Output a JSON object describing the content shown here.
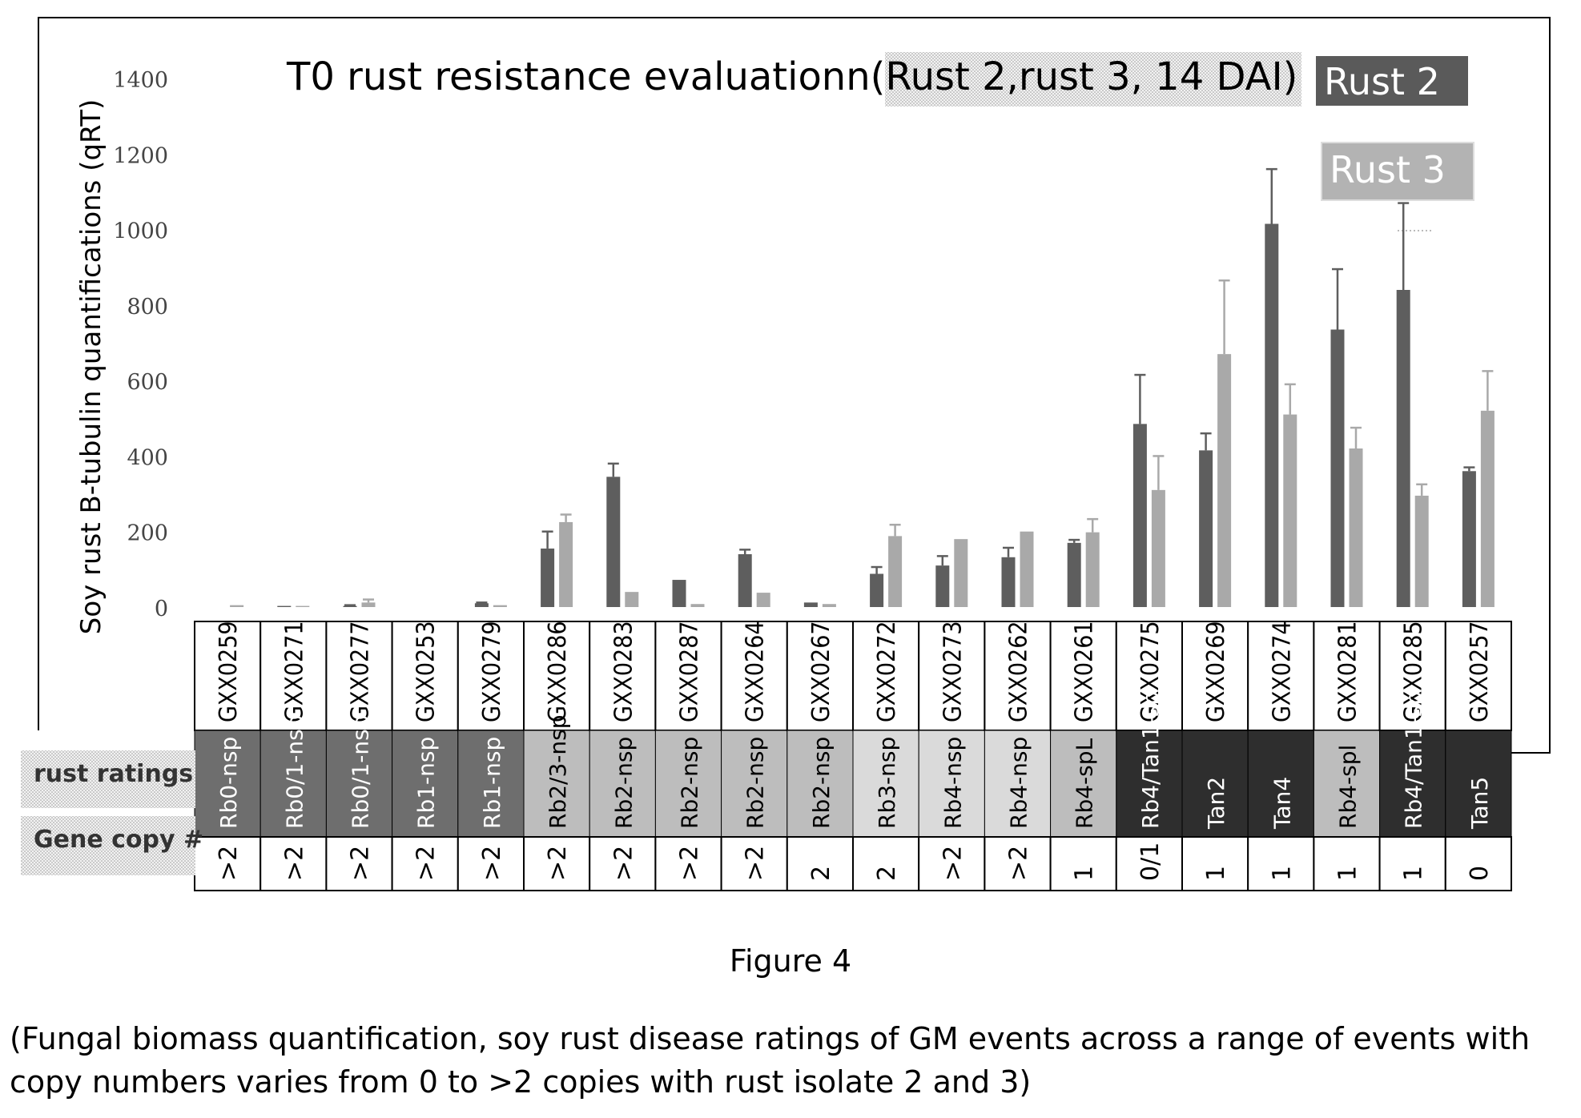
{
  "chart_data": {
    "type": "bar",
    "title": "T0 rust resistance evaluationn(Rust 2,rust 3, 14 DAI)",
    "ylabel": "Soy rust B-tubulin quantifications (qRT)",
    "xlabel": "",
    "ylim": [
      0,
      1400
    ],
    "yticks": [
      "0",
      "200",
      "400",
      "600",
      "800",
      "1000",
      "1200",
      "1400"
    ],
    "legend_position": "top-right",
    "categories": [
      "GXX0259",
      "GXX0271",
      "GXX0277",
      "GXX0253",
      "GXX0279",
      "GXX0286",
      "GXX0283",
      "GXX0287",
      "GXX0264",
      "GXX0267",
      "GXX0272",
      "GXX0273",
      "GXX0262",
      "GXX0261",
      "GXX0275",
      "GXX0269",
      "GXX0274",
      "GXX0281",
      "GXX0285",
      "GXX0257"
    ],
    "series": [
      {
        "name": "Rust 2",
        "color": "#5e5e5e",
        "values": [
          null,
          3,
          3,
          null,
          10,
          155,
          345,
          72,
          140,
          12,
          88,
          110,
          132,
          170,
          485,
          415,
          1015,
          735,
          840,
          360
        ],
        "errors": [
          null,
          0,
          2,
          null,
          2,
          45,
          35,
          0,
          12,
          0,
          18,
          25,
          25,
          8,
          130,
          45,
          145,
          160,
          230,
          10
        ]
      },
      {
        "name": "Rust 3",
        "color": "#a9a9a9",
        "values": [
          5,
          3,
          12,
          null,
          5,
          225,
          40,
          8,
          38,
          8,
          188,
          180,
          200,
          198,
          310,
          670,
          510,
          420,
          295,
          520
        ],
        "errors": [
          0,
          0,
          8,
          null,
          0,
          20,
          0,
          0,
          0,
          0,
          30,
          0,
          0,
          35,
          90,
          195,
          80,
          55,
          30,
          105
        ]
      }
    ],
    "rating_row_label": "rust ratings",
    "rust_ratings": [
      "Rb0-nsp",
      "Rb0/1-nsp",
      "Rb0/1-nsp",
      "Rb1-nsp",
      "Rb1-nsp",
      "Rb2/3-nsp",
      "Rb2-nsp",
      "Rb2-nsp",
      "Rb2-nsp",
      "Rb2-nsp",
      "Rb3-nsp",
      "Rb4-nsp",
      "Rb4-nsp",
      "Rb4-spL",
      "Rb4/Tan1-sp",
      "Tan2",
      "Tan4",
      "Rb4-spl",
      "Rb4/Tan1-sp",
      "Tan5"
    ],
    "rating_colors": [
      "#6e6e6e",
      "#6e6e6e",
      "#6e6e6e",
      "#6e6e6e",
      "#6e6e6e",
      "#bdbdbd",
      "#bdbdbd",
      "#bdbdbd",
      "#bdbdbd",
      "#bdbdbd",
      "#dadada",
      "#dadada",
      "#dadada",
      "#bdbdbd",
      "#2e2e2e",
      "#2e2e2e",
      "#2e2e2e",
      "#bdbdbd",
      "#2e2e2e",
      "#2e2e2e"
    ],
    "copy_row_label": "Gene copy #",
    "gene_copy": [
      ">2",
      ">2",
      ">2",
      ">2",
      ">2",
      ">2",
      ">2",
      ">2",
      ">2",
      "2",
      "2",
      ">2",
      ">2",
      "1",
      "0/1",
      "1",
      "1",
      "1",
      "1",
      "0"
    ]
  },
  "figure_title": "Figure 4",
  "figure_description": "(Fungal biomass quantification, soy rust disease ratings of GM events across a range of events with copy numbers varies from 0 to >2 copies with rust isolate 2 and 3)"
}
